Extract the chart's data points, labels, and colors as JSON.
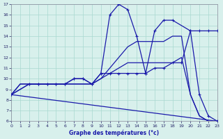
{
  "bg_color": "#d8f0ec",
  "grid_color": "#a8d8d0",
  "line_color": "#1a1aaa",
  "xlabel": "Graphe des températures (°c)",
  "xlim": [
    0,
    23
  ],
  "ylim": [
    6,
    17
  ],
  "yticks": [
    6,
    7,
    8,
    9,
    10,
    11,
    12,
    13,
    14,
    15,
    16,
    17
  ],
  "xticks": [
    0,
    1,
    2,
    3,
    4,
    5,
    6,
    7,
    8,
    9,
    10,
    11,
    12,
    13,
    14,
    15,
    16,
    17,
    18,
    19,
    20,
    21,
    22,
    23
  ],
  "series": [
    {
      "x": [
        0,
        23
      ],
      "y": [
        8.5,
        6.0
      ],
      "marker": false
    },
    {
      "x": [
        0,
        1,
        2,
        3,
        4,
        5,
        6,
        7,
        8,
        9,
        10,
        11,
        12,
        13,
        14,
        15,
        16,
        17,
        18,
        19,
        20,
        21,
        22,
        23
      ],
      "y": [
        8.5,
        9.5,
        9.5,
        9.5,
        9.5,
        9.5,
        9.5,
        9.5,
        9.5,
        9.5,
        10.0,
        10.5,
        11.0,
        11.5,
        11.5,
        11.5,
        11.5,
        11.5,
        11.5,
        12.0,
        8.5,
        6.5,
        6.0,
        6.0
      ],
      "marker": false
    },
    {
      "x": [
        0,
        1,
        2,
        3,
        4,
        5,
        6,
        7,
        8,
        9,
        10,
        11,
        12,
        13,
        14,
        15,
        16,
        17,
        18,
        19,
        20,
        21,
        22,
        23
      ],
      "y": [
        8.5,
        9.5,
        9.5,
        9.5,
        9.5,
        9.5,
        9.5,
        9.5,
        9.5,
        9.5,
        10.0,
        11.0,
        12.0,
        13.0,
        13.5,
        13.5,
        13.5,
        13.5,
        14.0,
        14.0,
        8.5,
        6.5,
        6.0,
        6.0
      ],
      "marker": false
    },
    {
      "x": [
        0,
        2,
        3,
        4,
        5,
        6,
        7,
        8,
        9,
        10,
        11,
        12,
        13,
        14,
        15,
        16,
        17,
        18,
        19,
        20,
        21,
        22,
        23
      ],
      "y": [
        8.5,
        9.5,
        9.5,
        9.5,
        9.5,
        9.5,
        10.0,
        10.0,
        9.5,
        10.5,
        10.5,
        10.5,
        10.5,
        10.5,
        10.5,
        11.0,
        11.0,
        11.5,
        11.5,
        14.5,
        14.5,
        14.5,
        14.5
      ],
      "marker": true
    },
    {
      "x": [
        0,
        2,
        3,
        4,
        5,
        6,
        7,
        8,
        9,
        10,
        11,
        12,
        13,
        14,
        15,
        16,
        17,
        18,
        20,
        21,
        22,
        23
      ],
      "y": [
        8.5,
        9.5,
        9.5,
        9.5,
        9.5,
        9.5,
        10.0,
        10.0,
        9.5,
        10.5,
        16.0,
        17.0,
        16.5,
        14.0,
        10.5,
        14.5,
        15.5,
        15.5,
        14.5,
        8.5,
        6.5,
        6.0
      ],
      "marker": true
    }
  ]
}
